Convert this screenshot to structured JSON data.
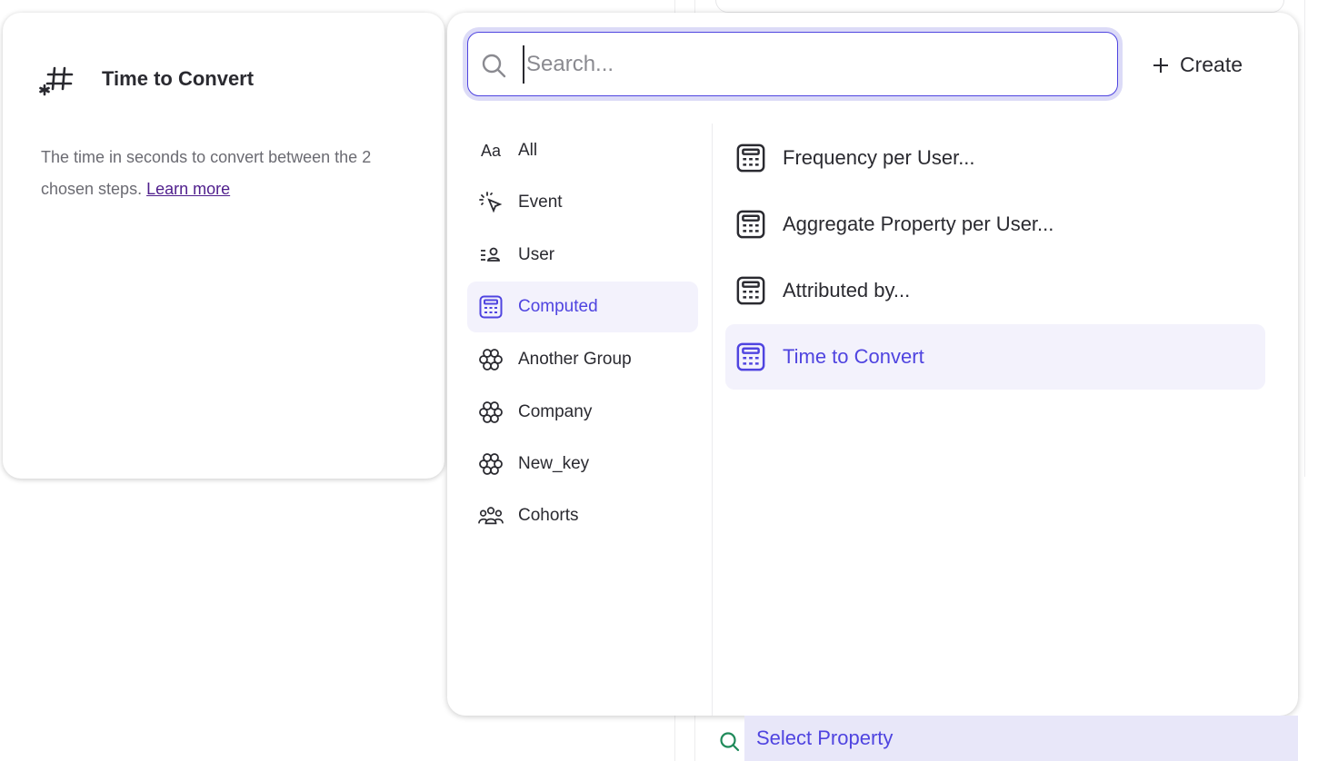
{
  "info_card": {
    "title": "Time to Convert",
    "icon": "hash-asterisk-icon",
    "description": "The time in seconds to convert between the 2 chosen steps.",
    "learn_more": "Learn more"
  },
  "search": {
    "value": "",
    "placeholder": "Search..."
  },
  "create_label": "Create",
  "categories": [
    {
      "label": "All",
      "icon": "text-aa-icon"
    },
    {
      "label": "Event",
      "icon": "cursor-click-icon"
    },
    {
      "label": "User",
      "icon": "user-list-icon"
    },
    {
      "label": "Computed",
      "icon": "calculator-icon",
      "selected": true
    },
    {
      "label": "Another Group",
      "icon": "group-flower-icon"
    },
    {
      "label": "Company",
      "icon": "group-flower-icon"
    },
    {
      "label": "New_key",
      "icon": "group-flower-icon"
    },
    {
      "label": "Cohorts",
      "icon": "cohorts-icon"
    }
  ],
  "items": [
    {
      "label": "Frequency per User..."
    },
    {
      "label": "Aggregate Property per User..."
    },
    {
      "label": "Attributed by..."
    },
    {
      "label": "Time to Convert",
      "selected": true
    }
  ],
  "bottom_bar": {
    "label": "Select Property"
  },
  "colors": {
    "accent": "#4f44e0",
    "selected_bg": "#f3f2fc",
    "link": "#4f1e8c",
    "search_icon_green": "#1f8a5a"
  }
}
